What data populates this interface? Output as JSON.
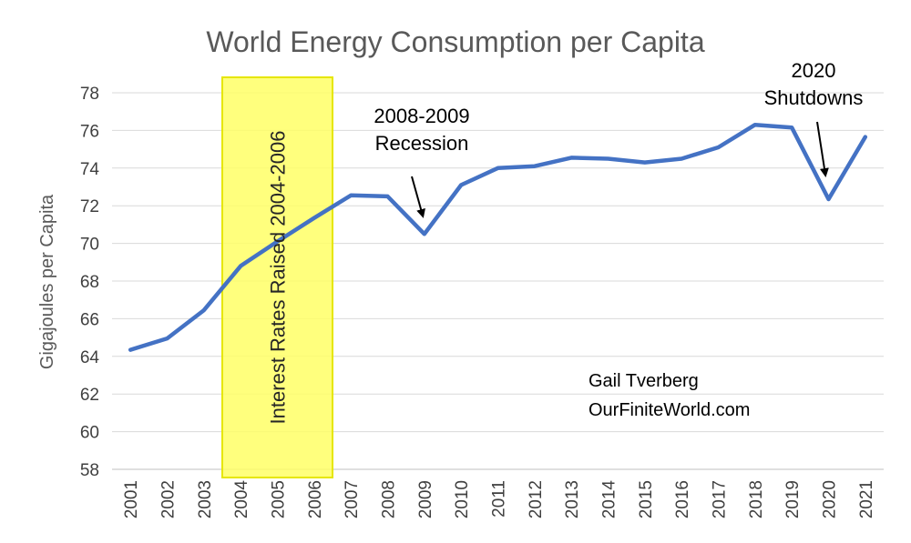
{
  "chart_data": {
    "type": "line",
    "title": "World Energy Consumption per Capita",
    "ylabel": "Gigajoules per Capita",
    "xlabel": "",
    "ylim": [
      58,
      78
    ],
    "yticks": [
      58,
      60,
      62,
      64,
      66,
      68,
      70,
      72,
      74,
      76,
      78
    ],
    "grid": true,
    "legend": false,
    "categories": [
      "2001",
      "2002",
      "2003",
      "2004",
      "2005",
      "2006",
      "2007",
      "2008",
      "2009",
      "2010",
      "2011",
      "2012",
      "2013",
      "2014",
      "2015",
      "2016",
      "2017",
      "2018",
      "2019",
      "2020",
      "2021"
    ],
    "series": [
      {
        "values": [
          64.35,
          64.95,
          66.45,
          68.8,
          70.1,
          71.35,
          72.55,
          72.5,
          70.5,
          73.1,
          74.0,
          74.1,
          74.55,
          74.5,
          74.3,
          74.5,
          75.1,
          76.3,
          76.15,
          72.35,
          75.65
        ],
        "color": "#4472C4"
      }
    ],
    "highlight_band": {
      "from": "2004",
      "to": "2006",
      "label": "Interest Rates Raised 2004-2006",
      "fill": "#FFFF66",
      "stroke": "#E6E600"
    },
    "annotations": [
      {
        "lines": [
          "2008-2009",
          "Recession"
        ],
        "target": "2009"
      },
      {
        "lines": [
          "2020",
          "Shutdowns"
        ],
        "target": "2020"
      }
    ],
    "credit": [
      "Gail Tverberg",
      "OurFiniteWorld.com"
    ]
  }
}
